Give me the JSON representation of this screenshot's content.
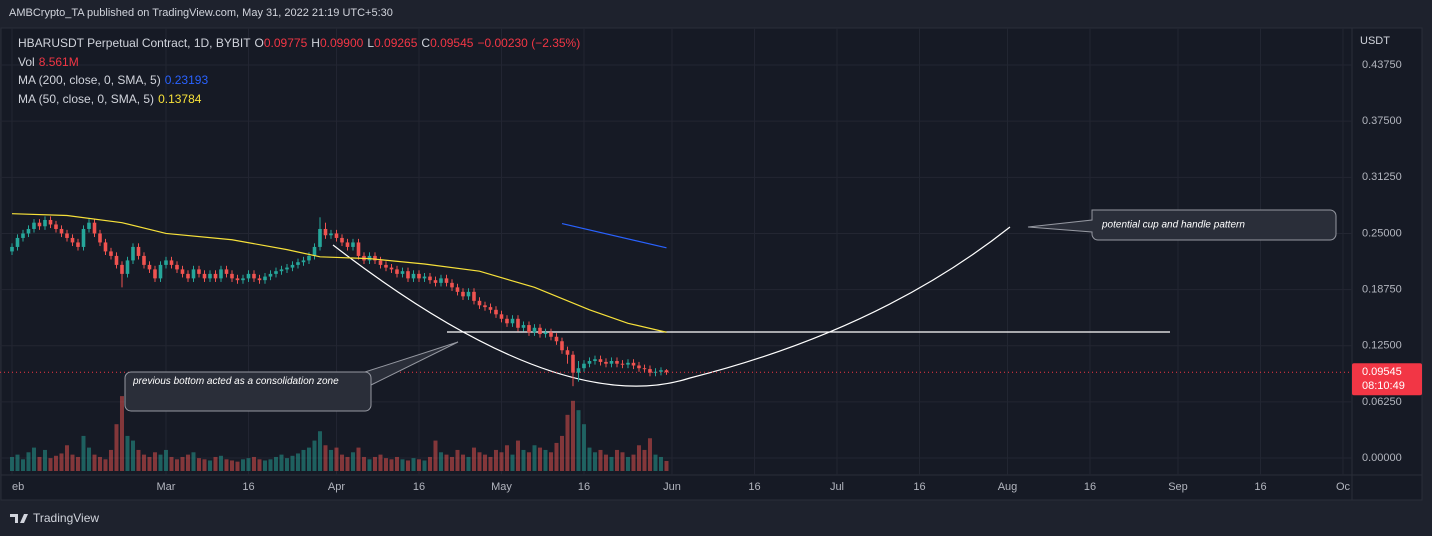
{
  "header": {
    "publisher": "AMBCrypto_TA published on TradingView.com, May 31, 2022 21:19 UTC+5:30"
  },
  "footer": {
    "brand": "TradingView"
  },
  "chart_data": {
    "type": "candlestick",
    "title": "HBARUSDT Perpetual Contract, 1D, BYBIT",
    "legend": {
      "ohlc": [
        {
          "label": "O",
          "value": "0.09775"
        },
        {
          "label": "H",
          "value": "0.09900"
        },
        {
          "label": "L",
          "value": "0.09265"
        },
        {
          "label": "C",
          "value": "0.09545"
        }
      ],
      "change": "−0.00230 (−2.35%)",
      "indicators": [
        {
          "label": "Vol",
          "value": "8.561M",
          "color": "#f23645"
        },
        {
          "label": "MA (200, close, 0, SMA, 5)",
          "value": "0.23193",
          "color": "#2962ff"
        },
        {
          "label": "MA (50, close, 0, SMA, 5)",
          "value": "0.13784",
          "color": "#f7e13a"
        }
      ]
    },
    "currency": "USDT",
    "last_price": {
      "value": 0.09545,
      "label": "0.09545",
      "countdown": "08:10:49",
      "color": "#f23645"
    },
    "up_color": "#26a69a",
    "down_color": "#ef5350",
    "candles": [
      [
        0.23,
        0.239,
        0.226,
        0.235
      ],
      [
        0.235,
        0.249,
        0.231,
        0.245
      ],
      [
        0.245,
        0.254,
        0.241,
        0.25
      ],
      [
        0.25,
        0.259,
        0.246,
        0.255
      ],
      [
        0.255,
        0.266,
        0.251,
        0.262
      ],
      [
        0.262,
        0.266,
        0.254,
        0.258
      ],
      [
        0.258,
        0.269,
        0.254,
        0.265
      ],
      [
        0.265,
        0.269,
        0.256,
        0.26
      ],
      [
        0.26,
        0.264,
        0.251,
        0.255
      ],
      [
        0.255,
        0.259,
        0.246,
        0.25
      ],
      [
        0.25,
        0.254,
        0.241,
        0.245
      ],
      [
        0.245,
        0.249,
        0.236,
        0.24
      ],
      [
        0.24,
        0.244,
        0.231,
        0.235
      ],
      [
        0.235,
        0.259,
        0.231,
        0.255
      ],
      [
        0.255,
        0.266,
        0.251,
        0.262
      ],
      [
        0.262,
        0.266,
        0.246,
        0.25
      ],
      [
        0.25,
        0.254,
        0.236,
        0.24
      ],
      [
        0.24,
        0.244,
        0.226,
        0.23
      ],
      [
        0.23,
        0.234,
        0.221,
        0.225
      ],
      [
        0.225,
        0.229,
        0.211,
        0.215
      ],
      [
        0.215,
        0.219,
        0.19,
        0.205
      ],
      [
        0.205,
        0.224,
        0.201,
        0.22
      ],
      [
        0.22,
        0.239,
        0.216,
        0.235
      ],
      [
        0.235,
        0.239,
        0.221,
        0.225
      ],
      [
        0.225,
        0.229,
        0.211,
        0.215
      ],
      [
        0.215,
        0.219,
        0.206,
        0.21
      ],
      [
        0.21,
        0.214,
        0.196,
        0.2
      ],
      [
        0.2,
        0.219,
        0.196,
        0.215
      ],
      [
        0.215,
        0.224,
        0.211,
        0.22
      ],
      [
        0.22,
        0.224,
        0.211,
        0.215
      ],
      [
        0.215,
        0.219,
        0.206,
        0.21
      ],
      [
        0.21,
        0.214,
        0.201,
        0.205
      ],
      [
        0.205,
        0.209,
        0.196,
        0.2
      ],
      [
        0.2,
        0.214,
        0.196,
        0.21
      ],
      [
        0.21,
        0.214,
        0.201,
        0.205
      ],
      [
        0.205,
        0.209,
        0.196,
        0.2
      ],
      [
        0.2,
        0.209,
        0.196,
        0.205
      ],
      [
        0.205,
        0.209,
        0.196,
        0.2
      ],
      [
        0.2,
        0.214,
        0.196,
        0.21
      ],
      [
        0.21,
        0.214,
        0.201,
        0.205
      ],
      [
        0.205,
        0.209,
        0.196,
        0.2
      ],
      [
        0.2,
        0.204,
        0.194,
        0.198
      ],
      [
        0.198,
        0.204,
        0.194,
        0.2
      ],
      [
        0.2,
        0.209,
        0.196,
        0.205
      ],
      [
        0.205,
        0.209,
        0.196,
        0.2
      ],
      [
        0.2,
        0.204,
        0.194,
        0.198
      ],
      [
        0.198,
        0.206,
        0.194,
        0.202
      ],
      [
        0.202,
        0.209,
        0.198,
        0.205
      ],
      [
        0.205,
        0.212,
        0.201,
        0.208
      ],
      [
        0.208,
        0.214,
        0.204,
        0.21
      ],
      [
        0.21,
        0.216,
        0.206,
        0.212
      ],
      [
        0.212,
        0.219,
        0.208,
        0.215
      ],
      [
        0.215,
        0.222,
        0.211,
        0.218
      ],
      [
        0.218,
        0.224,
        0.214,
        0.22
      ],
      [
        0.22,
        0.229,
        0.216,
        0.225
      ],
      [
        0.225,
        0.239,
        0.221,
        0.235
      ],
      [
        0.235,
        0.268,
        0.231,
        0.255
      ],
      [
        0.255,
        0.262,
        0.244,
        0.248
      ],
      [
        0.248,
        0.254,
        0.244,
        0.25
      ],
      [
        0.25,
        0.254,
        0.241,
        0.245
      ],
      [
        0.245,
        0.249,
        0.236,
        0.24
      ],
      [
        0.24,
        0.244,
        0.231,
        0.235
      ],
      [
        0.235,
        0.244,
        0.231,
        0.24
      ],
      [
        0.24,
        0.244,
        0.221,
        0.225
      ],
      [
        0.225,
        0.229,
        0.216,
        0.22
      ],
      [
        0.22,
        0.229,
        0.216,
        0.225
      ],
      [
        0.225,
        0.229,
        0.216,
        0.22
      ],
      [
        0.22,
        0.224,
        0.211,
        0.215
      ],
      [
        0.215,
        0.219,
        0.208,
        0.212
      ],
      [
        0.212,
        0.216,
        0.206,
        0.21
      ],
      [
        0.21,
        0.214,
        0.201,
        0.205
      ],
      [
        0.205,
        0.212,
        0.201,
        0.208
      ],
      [
        0.208,
        0.212,
        0.196,
        0.2
      ],
      [
        0.2,
        0.209,
        0.196,
        0.205
      ],
      [
        0.205,
        0.209,
        0.196,
        0.2
      ],
      [
        0.2,
        0.206,
        0.196,
        0.202
      ],
      [
        0.202,
        0.206,
        0.194,
        0.198
      ],
      [
        0.198,
        0.202,
        0.191,
        0.195
      ],
      [
        0.195,
        0.204,
        0.191,
        0.2
      ],
      [
        0.2,
        0.204,
        0.191,
        0.195
      ],
      [
        0.195,
        0.199,
        0.186,
        0.19
      ],
      [
        0.19,
        0.194,
        0.181,
        0.185
      ],
      [
        0.185,
        0.189,
        0.176,
        0.18
      ],
      [
        0.18,
        0.189,
        0.176,
        0.185
      ],
      [
        0.185,
        0.189,
        0.171,
        0.175
      ],
      [
        0.175,
        0.179,
        0.166,
        0.17
      ],
      [
        0.17,
        0.174,
        0.164,
        0.168
      ],
      [
        0.168,
        0.172,
        0.161,
        0.165
      ],
      [
        0.165,
        0.169,
        0.156,
        0.16
      ],
      [
        0.16,
        0.164,
        0.151,
        0.155
      ],
      [
        0.155,
        0.159,
        0.146,
        0.15
      ],
      [
        0.15,
        0.159,
        0.146,
        0.155
      ],
      [
        0.155,
        0.159,
        0.141,
        0.145
      ],
      [
        0.145,
        0.152,
        0.141,
        0.148
      ],
      [
        0.148,
        0.152,
        0.136,
        0.14
      ],
      [
        0.14,
        0.149,
        0.136,
        0.145
      ],
      [
        0.145,
        0.149,
        0.134,
        0.138
      ],
      [
        0.138,
        0.144,
        0.134,
        0.14
      ],
      [
        0.14,
        0.144,
        0.131,
        0.135
      ],
      [
        0.135,
        0.139,
        0.126,
        0.13
      ],
      [
        0.13,
        0.134,
        0.116,
        0.12
      ],
      [
        0.12,
        0.124,
        0.105,
        0.115
      ],
      [
        0.115,
        0.119,
        0.08,
        0.095
      ],
      [
        0.095,
        0.108,
        0.085,
        0.1
      ],
      [
        0.1,
        0.109,
        0.096,
        0.105
      ],
      [
        0.105,
        0.112,
        0.101,
        0.108
      ],
      [
        0.108,
        0.114,
        0.104,
        0.11
      ],
      [
        0.11,
        0.114,
        0.103,
        0.107
      ],
      [
        0.107,
        0.111,
        0.101,
        0.105
      ],
      [
        0.105,
        0.112,
        0.101,
        0.108
      ],
      [
        0.108,
        0.112,
        0.101,
        0.105
      ],
      [
        0.105,
        0.109,
        0.1,
        0.104
      ],
      [
        0.104,
        0.11,
        0.1,
        0.106
      ],
      [
        0.106,
        0.11,
        0.099,
        0.103
      ],
      [
        0.103,
        0.107,
        0.096,
        0.1
      ],
      [
        0.1,
        0.104,
        0.095,
        0.099
      ],
      [
        0.099,
        0.103,
        0.091,
        0.095
      ],
      [
        0.095,
        0.1,
        0.091,
        0.096
      ],
      [
        0.096,
        0.101,
        0.092,
        0.09775
      ],
      [
        0.09775,
        0.099,
        0.09265,
        0.09545
      ]
    ],
    "volume": [
      12,
      14,
      10,
      16,
      20,
      12,
      18,
      11,
      13,
      15,
      22,
      14,
      12,
      30,
      20,
      14,
      12,
      10,
      18,
      40,
      64,
      30,
      26,
      18,
      14,
      12,
      16,
      14,
      18,
      12,
      10,
      12,
      14,
      16,
      11,
      10,
      9,
      12,
      13,
      10,
      9,
      8,
      10,
      11,
      12,
      10,
      9,
      10,
      12,
      14,
      11,
      13,
      15,
      18,
      20,
      26,
      34,
      22,
      18,
      20,
      14,
      12,
      16,
      20,
      12,
      10,
      12,
      14,
      11,
      10,
      12,
      10,
      9,
      11,
      10,
      9,
      12,
      26,
      16,
      14,
      12,
      18,
      14,
      12,
      20,
      16,
      14,
      12,
      18,
      16,
      22,
      14,
      26,
      18,
      16,
      22,
      20,
      18,
      16,
      24,
      30,
      48,
      60,
      52,
      40,
      20,
      16,
      18,
      14,
      12,
      18,
      16,
      12,
      14,
      22,
      18,
      28,
      14,
      12,
      8.561
    ],
    "ma_lines": [
      {
        "name": "MA (50, close, 0, SMA, 5)",
        "color": "#f7e13a",
        "x": [
          0,
          10,
          20,
          28,
          40,
          50,
          56,
          65,
          75,
          85,
          95,
          105,
          112,
          119
        ],
        "values": [
          0.272,
          0.27,
          0.262,
          0.25,
          0.243,
          0.232,
          0.224,
          0.222,
          0.216,
          0.208,
          0.19,
          0.165,
          0.15,
          0.14
        ]
      },
      {
        "name": "MA (200, close, 0, SMA, 5)",
        "color": "#2962ff",
        "x": [
          100,
          119
        ],
        "values": [
          0.261,
          0.234
        ]
      }
    ],
    "annotations": {
      "cup": "potential cup and handle pattern",
      "bottom": "previous bottom acted as a consolidation zone"
    },
    "ylim": [
      -0.0189,
      0.4765
    ],
    "yticks": [
      {
        "value": 0,
        "label": "0.00000"
      },
      {
        "value": 0.0625,
        "label": "0.06250"
      },
      {
        "value": 0.125,
        "label": "0.12500"
      },
      {
        "value": 0.1875,
        "label": "0.18750"
      },
      {
        "value": 0.25,
        "label": "0.25000"
      },
      {
        "value": 0.3125,
        "label": "0.31250"
      },
      {
        "value": 0.375,
        "label": "0.37500"
      },
      {
        "value": 0.4375,
        "label": "0.43750"
      }
    ],
    "xlim": [
      -2.18,
      243.64
    ],
    "xticks": [
      {
        "value": 0,
        "label": "eb"
      },
      {
        "value": 28,
        "label": "Mar"
      },
      {
        "value": 43,
        "label": "16"
      },
      {
        "value": 59,
        "label": "Apr"
      },
      {
        "value": 74,
        "label": "16"
      },
      {
        "value": 89,
        "label": "May"
      },
      {
        "value": 104,
        "label": "16"
      },
      {
        "value": 120,
        "label": "Jun"
      },
      {
        "value": 135,
        "label": "16"
      },
      {
        "value": 150,
        "label": "Jul"
      },
      {
        "value": 165,
        "label": "16"
      },
      {
        "value": 181,
        "label": "Aug"
      },
      {
        "value": 196,
        "label": "16"
      },
      {
        "value": 212,
        "label": "Sep"
      },
      {
        "value": 227,
        "label": "16"
      },
      {
        "value": 242,
        "label": "Oc"
      }
    ],
    "grid": true
  }
}
